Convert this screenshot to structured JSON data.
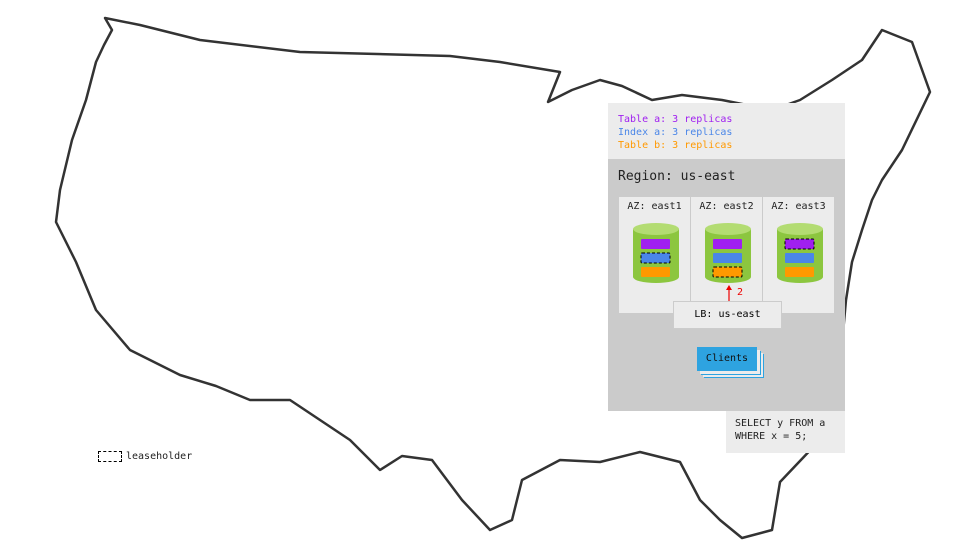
{
  "legend": {
    "items": [
      {
        "label": "Table a: 3 replicas",
        "color": "#a020f0"
      },
      {
        "label": "Index a: 3 replicas",
        "color": "#4a86e8"
      },
      {
        "label": "Table b: 3 replicas",
        "color": "#ff9900"
      }
    ]
  },
  "region": {
    "title": "Region: us-east",
    "azs": [
      {
        "label": "AZ: east1",
        "leaseholder": "index-a"
      },
      {
        "label": "AZ: east2",
        "leaseholder": "table-b"
      },
      {
        "label": "AZ: east3",
        "leaseholder": "table-a"
      }
    ],
    "arrow_label": "2",
    "lb_label": "LB: us-east",
    "clients_label": "Clients"
  },
  "query": {
    "line1": "SELECT y FROM a",
    "line2": "WHERE x = 5;"
  },
  "leaseholder_legend": "leaseholder",
  "colors": {
    "node": "#8cc63f",
    "node_top": "#b3dc72",
    "clients": "#2ea3e0",
    "arrow": "#e00000"
  }
}
